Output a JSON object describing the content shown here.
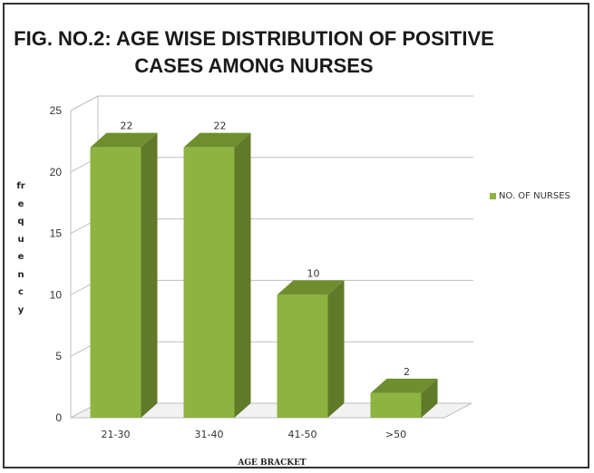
{
  "chart_data": {
    "type": "bar",
    "title": "FIG. NO.2: AGE WISE DISTRIBUTION OF POSITIVE CASES AMONG NURSES",
    "xlabel": "AGE BRACKET",
    "ylabel": "frequency",
    "categories": [
      "21-30",
      "31-40",
      "41-50",
      ">50"
    ],
    "series": [
      {
        "name": "NO. OF NURSES",
        "values": [
          22,
          22,
          10,
          2
        ]
      }
    ],
    "ylim": [
      0,
      25
    ],
    "yticks": [
      0,
      5,
      10,
      15,
      20,
      25
    ],
    "data_labels": [
      "22",
      "22",
      "10",
      "2"
    ],
    "grid": true,
    "legend_position": "right",
    "bar_color": "#8db340",
    "three_d": true
  }
}
